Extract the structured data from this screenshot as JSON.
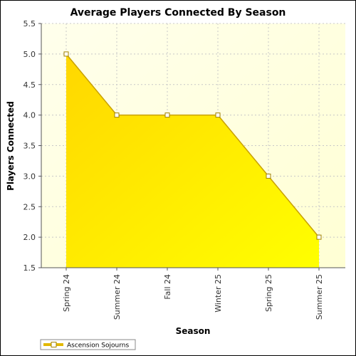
{
  "colors": {
    "plot_bg_start": "#ffffec",
    "plot_bg_end": "#ffffd4",
    "area_top": "#ffd700",
    "area_bottom": "#ffff00",
    "line": "#c9a100",
    "marker_fill": "#ffffff",
    "marker_stroke": "#a08000",
    "grid": "#c8c8c8"
  },
  "chart_data": {
    "type": "area",
    "title": "Average Players Connected By Season",
    "xlabel": "Season",
    "ylabel": "Players Connected",
    "categories": [
      "Spring 24",
      "Summer 24",
      "Fall 24",
      "Winter 25",
      "Spring 25",
      "Summer 25"
    ],
    "series": [
      {
        "name": "Ascension Sojourns",
        "values": [
          5.0,
          4.0,
          4.0,
          4.0,
          3.0,
          2.0
        ]
      }
    ],
    "ylim": [
      1.5,
      5.5
    ],
    "yticks": [
      "1.5",
      "2.0",
      "2.5",
      "3.0",
      "3.5",
      "4.0",
      "4.5",
      "5.0",
      "5.5"
    ],
    "grid": true,
    "legend_position": "bottom-left"
  }
}
